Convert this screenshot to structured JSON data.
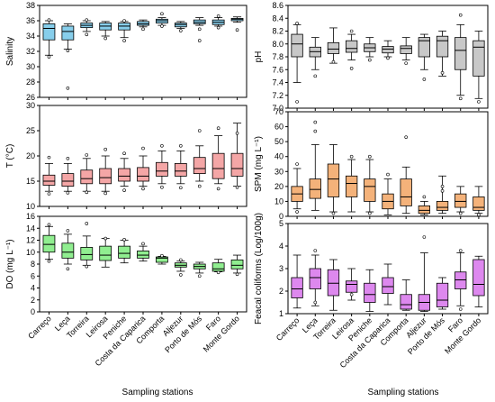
{
  "chart_data": [
    {
      "type": "boxplot",
      "ylabel": "Salinity",
      "ylim": [
        26,
        38
      ],
      "yticks": [
        26,
        28,
        30,
        32,
        34,
        36,
        38
      ],
      "color": "#87ceeb",
      "categories": [
        "Carreço",
        "Leça",
        "Torreira",
        "Leirosa",
        "Peniche",
        "Costa da Caparica",
        "Comporta",
        "Aljezur",
        "Porto de Mós",
        "Faro",
        "Monte Gordo"
      ],
      "boxes": [
        {
          "whislo": 31.5,
          "q1": 33.5,
          "med": 35.0,
          "q3": 35.6,
          "whishi": 36.0,
          "fliers": [
            31.3,
            36.1
          ]
        },
        {
          "whislo": 32.3,
          "q1": 33.5,
          "med": 34.6,
          "q3": 35.3,
          "whishi": 35.6,
          "fliers": [
            27.2,
            32.1
          ]
        },
        {
          "whislo": 34.6,
          "q1": 35.1,
          "med": 35.4,
          "q3": 35.7,
          "whishi": 36.0,
          "fliers": [
            34.2,
            36.1
          ]
        },
        {
          "whislo": 34.0,
          "q1": 34.8,
          "med": 35.3,
          "q3": 35.7,
          "whishi": 35.9,
          "fliers": [
            33.7
          ]
        },
        {
          "whislo": 33.8,
          "q1": 34.8,
          "med": 35.3,
          "q3": 35.7,
          "whishi": 35.9,
          "fliers": [
            33.4,
            36.0
          ]
        },
        {
          "whislo": 35.2,
          "q1": 35.4,
          "med": 35.6,
          "q3": 35.9,
          "whishi": 36.1,
          "fliers": [
            34.9
          ]
        },
        {
          "whislo": 35.4,
          "q1": 35.7,
          "med": 36.0,
          "q3": 36.2,
          "whishi": 36.4,
          "fliers": [
            36.9,
            35.3
          ]
        },
        {
          "whislo": 35.0,
          "q1": 35.2,
          "med": 35.5,
          "q3": 35.7,
          "whishi": 35.9,
          "fliers": [
            34.7
          ]
        },
        {
          "whislo": 35.4,
          "q1": 35.6,
          "med": 35.8,
          "q3": 36.1,
          "whishi": 36.4,
          "fliers": [
            33.4,
            34.9
          ]
        },
        {
          "whislo": 35.3,
          "q1": 35.5,
          "med": 35.8,
          "q3": 36.1,
          "whishi": 36.4,
          "fliers": [
            36.6,
            35.1
          ]
        },
        {
          "whislo": 35.8,
          "q1": 36.0,
          "med": 36.2,
          "q3": 36.3,
          "whishi": 36.5,
          "fliers": [
            34.8
          ]
        }
      ]
    },
    {
      "type": "boxplot",
      "ylabel": "pH",
      "ylim": [
        7.0,
        8.6
      ],
      "yticks": [
        7.0,
        7.2,
        7.4,
        7.6,
        7.8,
        8.0,
        8.2,
        8.4,
        8.6
      ],
      "color": "#c8c8c8",
      "categories": [
        "Carreço",
        "Leça",
        "Torreira",
        "Leirosa",
        "Peniche",
        "Costa da Caparica",
        "Comporta",
        "Aljezur",
        "Porto de Mós",
        "Faro",
        "Monte Gordo"
      ],
      "boxes": [
        {
          "whislo": 7.4,
          "q1": 7.8,
          "med": 8.0,
          "q3": 8.15,
          "whishi": 8.3,
          "fliers": [
            7.1,
            8.32
          ]
        },
        {
          "whislo": 7.6,
          "q1": 7.8,
          "med": 7.88,
          "q3": 7.95,
          "whishi": 8.1,
          "fliers": [
            7.5
          ]
        },
        {
          "whislo": 7.7,
          "q1": 7.85,
          "med": 7.92,
          "q3": 8.02,
          "whishi": 8.25,
          "fliers": [
            7.72
          ]
        },
        {
          "whislo": 7.75,
          "q1": 7.87,
          "med": 7.93,
          "q3": 8.05,
          "whishi": 8.15,
          "fliers": [
            7.62,
            8.2
          ]
        },
        {
          "whislo": 7.8,
          "q1": 7.88,
          "med": 7.94,
          "q3": 8.0,
          "whishi": 8.1,
          "fliers": [
            7.75
          ]
        },
        {
          "whislo": 7.8,
          "q1": 7.86,
          "med": 7.92,
          "q3": 7.96,
          "whishi": 8.05,
          "fliers": [
            7.78
          ]
        },
        {
          "whislo": 7.75,
          "q1": 7.85,
          "med": 7.93,
          "q3": 7.97,
          "whishi": 8.1,
          "fliers": [
            7.7
          ]
        },
        {
          "whislo": 7.6,
          "q1": 7.8,
          "med": 8.05,
          "q3": 8.1,
          "whishi": 8.15,
          "fliers": [
            7.45
          ]
        },
        {
          "whislo": 7.5,
          "q1": 7.8,
          "med": 8.05,
          "q3": 8.12,
          "whishi": 8.2,
          "fliers": [
            7.55
          ]
        },
        {
          "whislo": 7.2,
          "q1": 7.6,
          "med": 7.9,
          "q3": 8.1,
          "whishi": 8.3,
          "fliers": [
            7.15,
            8.45
          ]
        },
        {
          "whislo": 7.15,
          "q1": 7.5,
          "med": 7.95,
          "q3": 8.05,
          "whishi": 8.2,
          "fliers": [
            7.1
          ]
        }
      ]
    },
    {
      "type": "boxplot",
      "ylabel": "T (°C)",
      "ylim": [
        10,
        30
      ],
      "yticks": [
        10,
        15,
        20,
        25,
        30
      ],
      "color": "#f4a6a6",
      "categories": [
        "Carreço",
        "Leça",
        "Torreira",
        "Leirosa",
        "Peniche",
        "Costa da Caparica",
        "Comporta",
        "Aljezur",
        "Porto de Mós",
        "Faro",
        "Monte Gordo"
      ],
      "boxes": [
        {
          "whislo": 13.0,
          "q1": 14.2,
          "med": 15.0,
          "q3": 16.2,
          "whishi": 18.5,
          "fliers": [
            12.5,
            19.7
          ]
        },
        {
          "whislo": 13.0,
          "q1": 14.0,
          "med": 15.0,
          "q3": 16.5,
          "whishi": 18.5,
          "fliers": [
            12.7,
            19.5
          ]
        },
        {
          "whislo": 13.0,
          "q1": 14.5,
          "med": 15.5,
          "q3": 17.2,
          "whishi": 19.5,
          "fliers": [
            12.8,
            20.2
          ]
        },
        {
          "whislo": 13.0,
          "q1": 14.5,
          "med": 15.7,
          "q3": 17.5,
          "whishi": 20.0,
          "fliers": [
            12.6,
            21.3
          ]
        },
        {
          "whislo": 14.0,
          "q1": 15.0,
          "med": 16.0,
          "q3": 17.5,
          "whishi": 19.5,
          "fliers": [
            13.2,
            20.5
          ]
        },
        {
          "whislo": 14.0,
          "q1": 15.0,
          "med": 16.0,
          "q3": 17.7,
          "whishi": 20.0,
          "fliers": [
            13.5,
            21.5
          ]
        },
        {
          "whislo": 14.5,
          "q1": 16.0,
          "med": 17.0,
          "q3": 18.7,
          "whishi": 21.0,
          "fliers": [
            13.8,
            22.0
          ]
        },
        {
          "whislo": 14.5,
          "q1": 16.0,
          "med": 17.0,
          "q3": 18.5,
          "whishi": 21.0,
          "fliers": [
            13.7,
            22.0
          ]
        },
        {
          "whislo": 15.0,
          "q1": 16.5,
          "med": 17.5,
          "q3": 19.7,
          "whishi": 22.0,
          "fliers": [
            14.0,
            25.0
          ]
        },
        {
          "whislo": 14.5,
          "q1": 15.5,
          "med": 17.5,
          "q3": 20.5,
          "whishi": 24.0,
          "fliers": [
            13.5,
            25.5
          ]
        },
        {
          "whislo": 14.0,
          "q1": 16.0,
          "med": 17.5,
          "q3": 20.5,
          "whishi": 26.5,
          "fliers": [
            13.8,
            24.5
          ]
        }
      ]
    },
    {
      "type": "boxplot",
      "ylabel": "SPM (mg L⁻¹)",
      "ylim": [
        0,
        70
      ],
      "yticks": [
        0,
        10,
        20,
        30,
        40,
        50,
        60,
        70
      ],
      "color": "#f4b27a",
      "categories": [
        "Carreço",
        "Leça",
        "Torreira",
        "Leirosa",
        "Peniche",
        "Costa da Caparica",
        "Comporta",
        "Aljezur",
        "Porto de Mós",
        "Faro",
        "Monte Gordo"
      ],
      "boxes": [
        {
          "whislo": 5,
          "q1": 10,
          "med": 15,
          "q3": 20,
          "whishi": 32,
          "fliers": [
            3,
            35
          ]
        },
        {
          "whislo": 4,
          "q1": 12,
          "med": 18,
          "q3": 25,
          "whishi": 48,
          "fliers": [
            63,
            57
          ]
        },
        {
          "whislo": 3,
          "q1": 13,
          "med": 25,
          "q3": 35,
          "whishi": 48,
          "fliers": [
            2
          ]
        },
        {
          "whislo": 3,
          "q1": 13,
          "med": 22,
          "q3": 27,
          "whishi": 38,
          "fliers": [
            40
          ]
        },
        {
          "whislo": 3,
          "q1": 10,
          "med": 20,
          "q3": 25,
          "whishi": 38,
          "fliers": [
            2,
            40
          ]
        },
        {
          "whislo": 1,
          "q1": 5,
          "med": 10,
          "q3": 15,
          "whishi": 25,
          "fliers": [
            28
          ]
        },
        {
          "whislo": 2,
          "q1": 7,
          "med": 13,
          "q3": 25,
          "whishi": 33,
          "fliers": [
            53
          ]
        },
        {
          "whislo": 1,
          "q1": 2,
          "med": 4,
          "q3": 7,
          "whishi": 10,
          "fliers": [
            13
          ]
        },
        {
          "whislo": 2,
          "q1": 4,
          "med": 6,
          "q3": 10,
          "whishi": 27,
          "fliers": [
            20,
            17
          ]
        },
        {
          "whislo": 3,
          "q1": 6,
          "med": 10,
          "q3": 15,
          "whishi": 20,
          "fliers": [
            2
          ]
        },
        {
          "whislo": 2,
          "q1": 4,
          "med": 6,
          "q3": 13,
          "whishi": 20,
          "fliers": [
            1
          ]
        }
      ]
    },
    {
      "type": "boxplot",
      "ylabel": "DO (mg L⁻¹)",
      "ylim": [
        0,
        16
      ],
      "yticks": [
        0,
        2,
        4,
        6,
        8,
        10,
        12,
        14,
        16
      ],
      "color": "#90ee90",
      "categories": [
        "Carreço",
        "Leça",
        "Torreira",
        "Leirosa",
        "Peniche",
        "Costa da Caparica",
        "Comporta",
        "Aljezur",
        "Porto de Mós",
        "Faro",
        "Monte Gordo"
      ],
      "boxes": [
        {
          "whislo": 8.8,
          "q1": 10.0,
          "med": 11.3,
          "q3": 12.8,
          "whishi": 14.3,
          "fliers": [
            8.5,
            14.6
          ]
        },
        {
          "whislo": 8.0,
          "q1": 9.0,
          "med": 10.0,
          "q3": 11.5,
          "whishi": 13.0,
          "fliers": [
            7.2,
            13.6
          ]
        },
        {
          "whislo": 7.8,
          "q1": 8.7,
          "med": 9.6,
          "q3": 10.8,
          "whishi": 12.7,
          "fliers": [
            14.8,
            7.6
          ]
        },
        {
          "whislo": 7.5,
          "q1": 8.6,
          "med": 9.5,
          "q3": 11.0,
          "whishi": 12.3,
          "fliers": [
            12.3
          ]
        },
        {
          "whislo": 8.2,
          "q1": 9.0,
          "med": 9.8,
          "q3": 11.0,
          "whishi": 12.0,
          "fliers": [
            12.1
          ]
        },
        {
          "whislo": 8.5,
          "q1": 9.0,
          "med": 9.5,
          "q3": 10.2,
          "whishi": 11.0,
          "fliers": [
            11.4
          ]
        },
        {
          "whislo": 8.0,
          "q1": 8.3,
          "med": 9.0,
          "q3": 9.2,
          "whishi": 9.3,
          "fliers": [
            9.4
          ]
        },
        {
          "whislo": 6.8,
          "q1": 7.5,
          "med": 7.8,
          "q3": 8.2,
          "whishi": 8.5,
          "fliers": [
            6.2,
            8.7
          ]
        },
        {
          "whislo": 6.5,
          "q1": 7.2,
          "med": 7.6,
          "q3": 8.0,
          "whishi": 8.3,
          "fliers": [
            6.0
          ]
        },
        {
          "whislo": 6.7,
          "q1": 6.8,
          "med": 7.2,
          "q3": 8.2,
          "whishi": 8.8,
          "fliers": [
            6.6
          ]
        },
        {
          "whislo": 6.5,
          "q1": 7.2,
          "med": 7.8,
          "q3": 8.7,
          "whishi": 9.5,
          "fliers": [
            6.3
          ]
        }
      ]
    },
    {
      "type": "boxplot",
      "ylabel": "Feacal coliforms (Log/100g)",
      "ylim": [
        1,
        5
      ],
      "yticks": [
        1,
        2,
        3,
        4,
        5
      ],
      "color": "#dd88ee",
      "categories": [
        "Carreço",
        "Leça",
        "Torreira",
        "Leirosa",
        "Peniche",
        "Costa da Caparica",
        "Comporta",
        "Aljezur",
        "Porto de Mós",
        "Faro",
        "Monte Gordo"
      ],
      "boxes": [
        {
          "whislo": 1.25,
          "q1": 1.7,
          "med": 2.1,
          "q3": 2.6,
          "whishi": 3.6,
          "fliers": []
        },
        {
          "whislo": 1.35,
          "q1": 2.1,
          "med": 2.6,
          "q3": 3.0,
          "whishi": 3.6,
          "fliers": [
            1.5,
            3.8
          ]
        },
        {
          "whislo": 1.15,
          "q1": 1.8,
          "med": 2.35,
          "q3": 2.95,
          "whishi": 3.4,
          "fliers": []
        },
        {
          "whislo": 1.6,
          "q1": 1.95,
          "med": 2.3,
          "q3": 2.45,
          "whishi": 3.0,
          "fliers": [
            1.85
          ]
        },
        {
          "whislo": 1.1,
          "q1": 1.5,
          "med": 1.85,
          "q3": 2.35,
          "whishi": 2.95,
          "fliers": []
        },
        {
          "whislo": 1.4,
          "q1": 1.9,
          "med": 2.2,
          "q3": 2.6,
          "whishi": 3.2,
          "fliers": []
        },
        {
          "whislo": 1.15,
          "q1": 1.2,
          "med": 1.4,
          "q3": 1.85,
          "whishi": 2.5,
          "fliers": []
        },
        {
          "whislo": 1.1,
          "q1": 1.15,
          "med": 1.5,
          "q3": 1.85,
          "whishi": 3.7,
          "fliers": [
            4.4
          ]
        },
        {
          "whislo": 1.2,
          "q1": 1.3,
          "med": 1.6,
          "q3": 2.35,
          "whishi": 2.6,
          "fliers": []
        },
        {
          "whislo": 1.35,
          "q1": 2.1,
          "med": 2.5,
          "q3": 2.85,
          "whishi": 3.7,
          "fliers": [
            1.2,
            3.8
          ]
        },
        {
          "whislo": 1.3,
          "q1": 1.8,
          "med": 2.3,
          "q3": 3.4,
          "whishi": 3.55,
          "fliers": []
        }
      ]
    }
  ],
  "xlabel_left": "Sampling stations",
  "xlabel_right": "Sampling stations"
}
